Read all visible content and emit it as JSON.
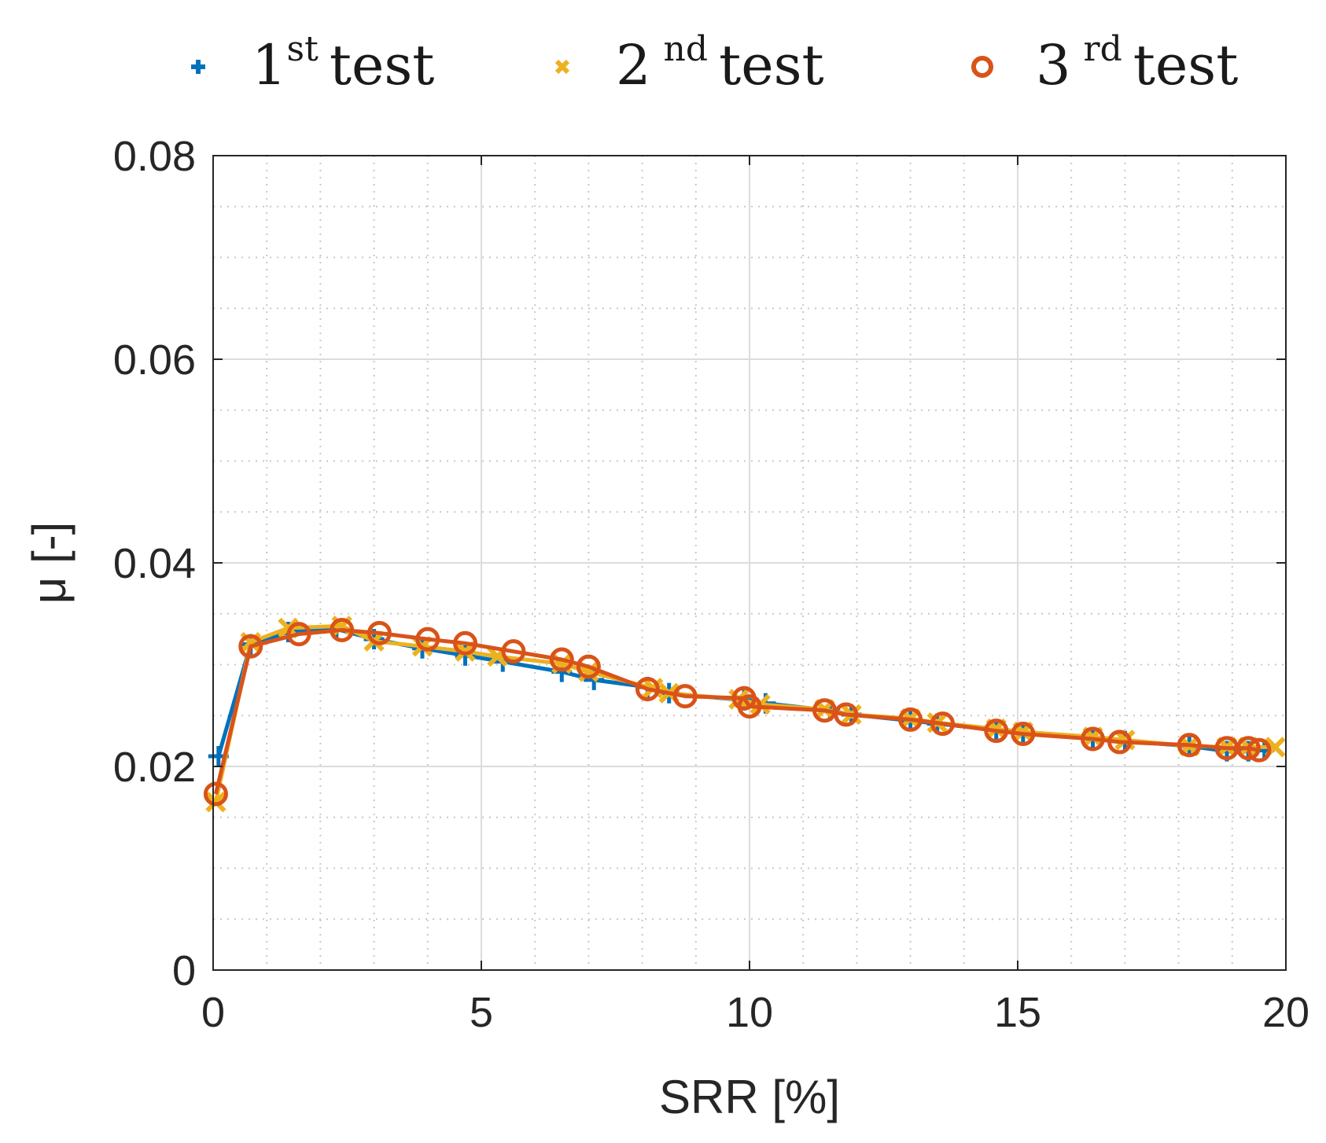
{
  "chart_data": {
    "type": "line",
    "title": "",
    "xlabel": "SRR [%]",
    "ylabel": "μ [-]",
    "xlim": [
      0,
      20
    ],
    "ylim": [
      0,
      0.08
    ],
    "x_ticks": [
      0,
      5,
      10,
      15,
      20
    ],
    "x_tick_labels": [
      "0",
      "5",
      "10",
      "15",
      "20"
    ],
    "y_ticks": [
      0,
      0.02,
      0.04,
      0.06,
      0.08
    ],
    "y_tick_labels": [
      "0",
      "0.02",
      "0.04",
      "0.06",
      "0.08"
    ],
    "grid": true,
    "minor_grid": true,
    "legend_position": "top",
    "series": [
      {
        "name": "1st test",
        "label_base": "1",
        "label_sup": "st",
        "label_rest": "test",
        "color": "#0072BD",
        "marker": "plus",
        "x": [
          0.1,
          0.7,
          1.4,
          2.3,
          3.0,
          3.9,
          4.7,
          5.4,
          6.5,
          7.1,
          8.1,
          8.5,
          9.9,
          10.3,
          11.5,
          11.9,
          13.0,
          13.5,
          14.6,
          15.1,
          16.4,
          17.0,
          18.2,
          18.9,
          19.3,
          19.6
        ],
        "y": [
          0.021,
          0.032,
          0.0332,
          0.0335,
          0.0325,
          0.0316,
          0.0309,
          0.0303,
          0.0293,
          0.0285,
          0.0278,
          0.0272,
          0.0265,
          0.0262,
          0.0255,
          0.0251,
          0.0245,
          0.0242,
          0.0236,
          0.0233,
          0.0228,
          0.0225,
          0.022,
          0.0215,
          0.0215,
          0.0216
        ]
      },
      {
        "name": "2nd test",
        "label_base": "2",
        "label_sup": "nd",
        "label_rest": "test",
        "color": "#EDB120",
        "marker": "x",
        "x": [
          0.05,
          0.7,
          1.4,
          2.4,
          3.0,
          3.9,
          4.7,
          5.3,
          6.5,
          7.0,
          8.2,
          8.5,
          9.8,
          10.2,
          11.4,
          11.9,
          13.0,
          13.5,
          14.6,
          15.1,
          16.4,
          17.0,
          18.2,
          18.9,
          19.3,
          19.8
        ],
        "y": [
          0.0165,
          0.0322,
          0.0336,
          0.0338,
          0.0323,
          0.0318,
          0.0313,
          0.0308,
          0.0301,
          0.0293,
          0.0277,
          0.0272,
          0.0266,
          0.0261,
          0.0256,
          0.0251,
          0.0247,
          0.0243,
          0.0237,
          0.0234,
          0.0229,
          0.0226,
          0.022,
          0.0219,
          0.0219,
          0.0219
        ]
      },
      {
        "name": "3rd test",
        "label_base": "3",
        "label_sup": "rd",
        "label_rest": "test",
        "color": "#D95319",
        "marker": "circle",
        "x": [
          0.05,
          0.7,
          1.6,
          2.4,
          3.1,
          4.0,
          4.7,
          5.6,
          6.5,
          7.0,
          8.1,
          8.8,
          9.9,
          10.0,
          11.4,
          11.8,
          13.0,
          13.6,
          14.6,
          15.1,
          16.4,
          16.9,
          18.2,
          18.9,
          19.3,
          19.5
        ],
        "y": [
          0.0173,
          0.0318,
          0.033,
          0.0334,
          0.0331,
          0.0325,
          0.0321,
          0.0313,
          0.0305,
          0.0298,
          0.0276,
          0.0269,
          0.0267,
          0.0259,
          0.0255,
          0.0251,
          0.0246,
          0.0242,
          0.0235,
          0.0232,
          0.0227,
          0.0224,
          0.0221,
          0.0218,
          0.0218,
          0.0216
        ]
      }
    ]
  }
}
